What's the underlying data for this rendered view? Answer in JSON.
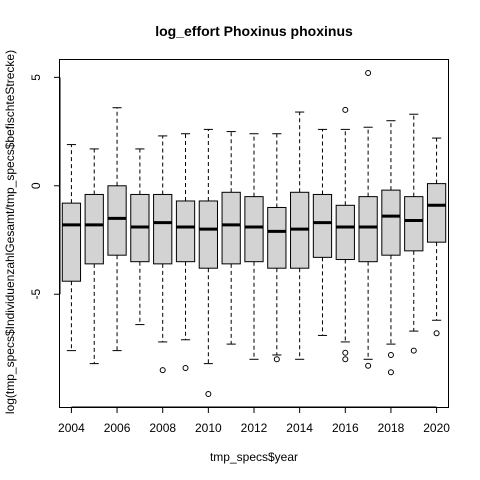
{
  "chart_data": {
    "type": "box",
    "title": "log_effort Phoxinus phoxinus",
    "xlabel": "tmp_specs$year",
    "ylabel": "log(tmp_specs$IndividuenzahlGesamt/tmp_specs$befischteStrecke)",
    "ylim": [
      -10.2,
      5.8
    ],
    "yticks": [
      -5,
      0,
      5
    ],
    "xticks": [
      "2004",
      "2006",
      "2008",
      "2010",
      "2012",
      "2014",
      "2016",
      "2018",
      "2020"
    ],
    "box_fill": "#d3d3d3",
    "categories": [
      "2004",
      "2005",
      "2006",
      "2007",
      "2008",
      "2009",
      "2010",
      "2011",
      "2012",
      "2013",
      "2014",
      "2015",
      "2016",
      "2017",
      "2018",
      "2019",
      "2020"
    ],
    "boxes": [
      {
        "year": "2004",
        "min": -7.6,
        "q1": -4.4,
        "median": -1.8,
        "q3": -0.8,
        "max": 1.9,
        "outliers": []
      },
      {
        "year": "2005",
        "min": -8.2,
        "q1": -3.6,
        "median": -1.8,
        "q3": -0.4,
        "max": 1.7,
        "outliers": []
      },
      {
        "year": "2006",
        "min": -7.6,
        "q1": -3.2,
        "median": -1.5,
        "q3": 0.0,
        "max": 3.6,
        "outliers": []
      },
      {
        "year": "2007",
        "min": -6.4,
        "q1": -3.5,
        "median": -1.9,
        "q3": -0.4,
        "max": 1.7,
        "outliers": []
      },
      {
        "year": "2008",
        "min": -7.2,
        "q1": -3.6,
        "median": -1.7,
        "q3": -0.4,
        "max": 2.3,
        "outliers": [
          -8.5
        ]
      },
      {
        "year": "2009",
        "min": -7.1,
        "q1": -3.5,
        "median": -1.9,
        "q3": -0.7,
        "max": 2.4,
        "outliers": [
          -8.4
        ]
      },
      {
        "year": "2010",
        "min": -8.2,
        "q1": -3.8,
        "median": -2.0,
        "q3": -0.7,
        "max": 2.6,
        "outliers": [
          -9.6
        ]
      },
      {
        "year": "2011",
        "min": -7.3,
        "q1": -3.6,
        "median": -1.8,
        "q3": -0.3,
        "max": 2.5,
        "outliers": []
      },
      {
        "year": "2012",
        "min": -8.0,
        "q1": -3.5,
        "median": -1.9,
        "q3": -0.5,
        "max": 2.4,
        "outliers": []
      },
      {
        "year": "2013",
        "min": -7.8,
        "q1": -3.8,
        "median": -2.1,
        "q3": -1.0,
        "max": 2.4,
        "outliers": [
          -8.0
        ]
      },
      {
        "year": "2014",
        "min": -8.0,
        "q1": -3.8,
        "median": -2.0,
        "q3": -0.3,
        "max": 3.4,
        "outliers": []
      },
      {
        "year": "2015",
        "min": -6.9,
        "q1": -3.3,
        "median": -1.7,
        "q3": -0.4,
        "max": 2.6,
        "outliers": []
      },
      {
        "year": "2016",
        "min": -7.2,
        "q1": -3.4,
        "median": -1.9,
        "q3": -0.9,
        "max": 2.6,
        "outliers": [
          3.5,
          -7.7,
          -8.0
        ]
      },
      {
        "year": "2017",
        "min": -8.0,
        "q1": -3.5,
        "median": -1.9,
        "q3": -0.5,
        "max": 2.7,
        "outliers": [
          5.2,
          -8.3
        ]
      },
      {
        "year": "2018",
        "min": -7.3,
        "q1": -3.2,
        "median": -1.4,
        "q3": -0.2,
        "max": 3.0,
        "outliers": [
          -7.8,
          -8.6
        ]
      },
      {
        "year": "2019",
        "min": -6.7,
        "q1": -3.0,
        "median": -1.6,
        "q3": -0.5,
        "max": 3.3,
        "outliers": [
          -7.6
        ]
      },
      {
        "year": "2020",
        "min": -6.2,
        "q1": -2.6,
        "median": -0.9,
        "q3": 0.1,
        "max": 2.2,
        "outliers": [
          -6.8
        ]
      }
    ]
  }
}
